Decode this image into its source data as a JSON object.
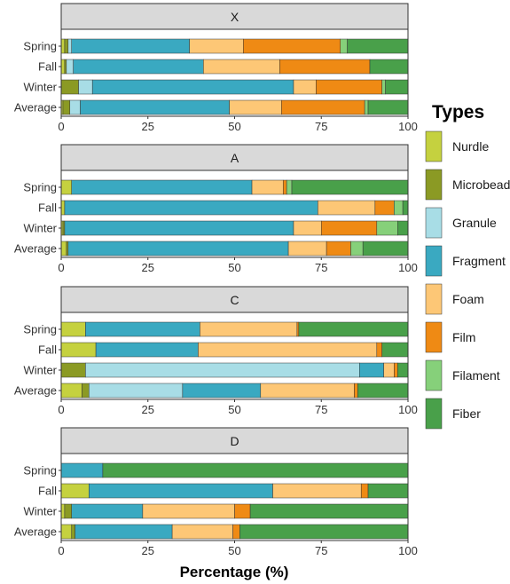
{
  "chart_data": {
    "type": "bar",
    "orientation": "horizontal-stacked",
    "xlabel": "Percentage (%)",
    "xlim": [
      0,
      100
    ],
    "xticks": [
      0,
      25,
      50,
      75,
      100
    ],
    "grid": false,
    "legend": {
      "title": "Types",
      "placement": "right",
      "entries": [
        {
          "name": "Nurdle",
          "color": "#c5d13f"
        },
        {
          "name": "Microbead",
          "color": "#8b9a24"
        },
        {
          "name": "Granule",
          "color": "#a8dde6"
        },
        {
          "name": "Fragment",
          "color": "#3aa9c1"
        },
        {
          "name": "Foam",
          "color": "#fdc776"
        },
        {
          "name": "Film",
          "color": "#ef8a14"
        },
        {
          "name": "Filament",
          "color": "#86d07a"
        },
        {
          "name": "Fiber",
          "color": "#49a04a"
        }
      ]
    },
    "panels": [
      {
        "title": "X",
        "categories": [
          "Spring",
          "Fall",
          "Winter",
          "Average"
        ],
        "values": [
          [
            1,
            1,
            1,
            34,
            15.5,
            28,
            2,
            17.5
          ],
          [
            1,
            0.5,
            2,
            37.5,
            22,
            26,
            0,
            11
          ],
          [
            0,
            5,
            4,
            58,
            6.5,
            19,
            1,
            6.5
          ],
          [
            0.5,
            2,
            3,
            43,
            15,
            24,
            1,
            11.5
          ]
        ]
      },
      {
        "title": "A",
        "categories": [
          "Spring",
          "Fall",
          "Winter",
          "Average"
        ],
        "values": [
          [
            3,
            0,
            0,
            52,
            9,
            1,
            1.5,
            33.5
          ],
          [
            1,
            0,
            0,
            73,
            16.5,
            5.5,
            2.5,
            1.5
          ],
          [
            0.5,
            0.5,
            0,
            66,
            8,
            16,
            6,
            3
          ],
          [
            1.5,
            0.5,
            0,
            63.5,
            11,
            7,
            3.5,
            13
          ]
        ]
      },
      {
        "title": "C",
        "categories": [
          "Spring",
          "Fall",
          "Winter",
          "Average"
        ],
        "values": [
          [
            7,
            0,
            0,
            33,
            28,
            0.5,
            0,
            31.5
          ],
          [
            10,
            0,
            0,
            29.5,
            51.5,
            1.5,
            0,
            7.5
          ],
          [
            0,
            7,
            79,
            7,
            3,
            1,
            0,
            3
          ],
          [
            6,
            2,
            27,
            22.5,
            27,
            1,
            0,
            14.5
          ]
        ]
      },
      {
        "title": "D",
        "categories": [
          "Spring",
          "Fall",
          "Winter",
          "Average"
        ],
        "values": [
          [
            0,
            0,
            0,
            12,
            0,
            0,
            0,
            88
          ],
          [
            8,
            0,
            0,
            53,
            25.5,
            2,
            0,
            11.5
          ],
          [
            1,
            2,
            0,
            20.5,
            26.5,
            4.5,
            0,
            45.5
          ],
          [
            3,
            1,
            0,
            28,
            17.5,
            2,
            0,
            48.5
          ]
        ]
      }
    ]
  }
}
